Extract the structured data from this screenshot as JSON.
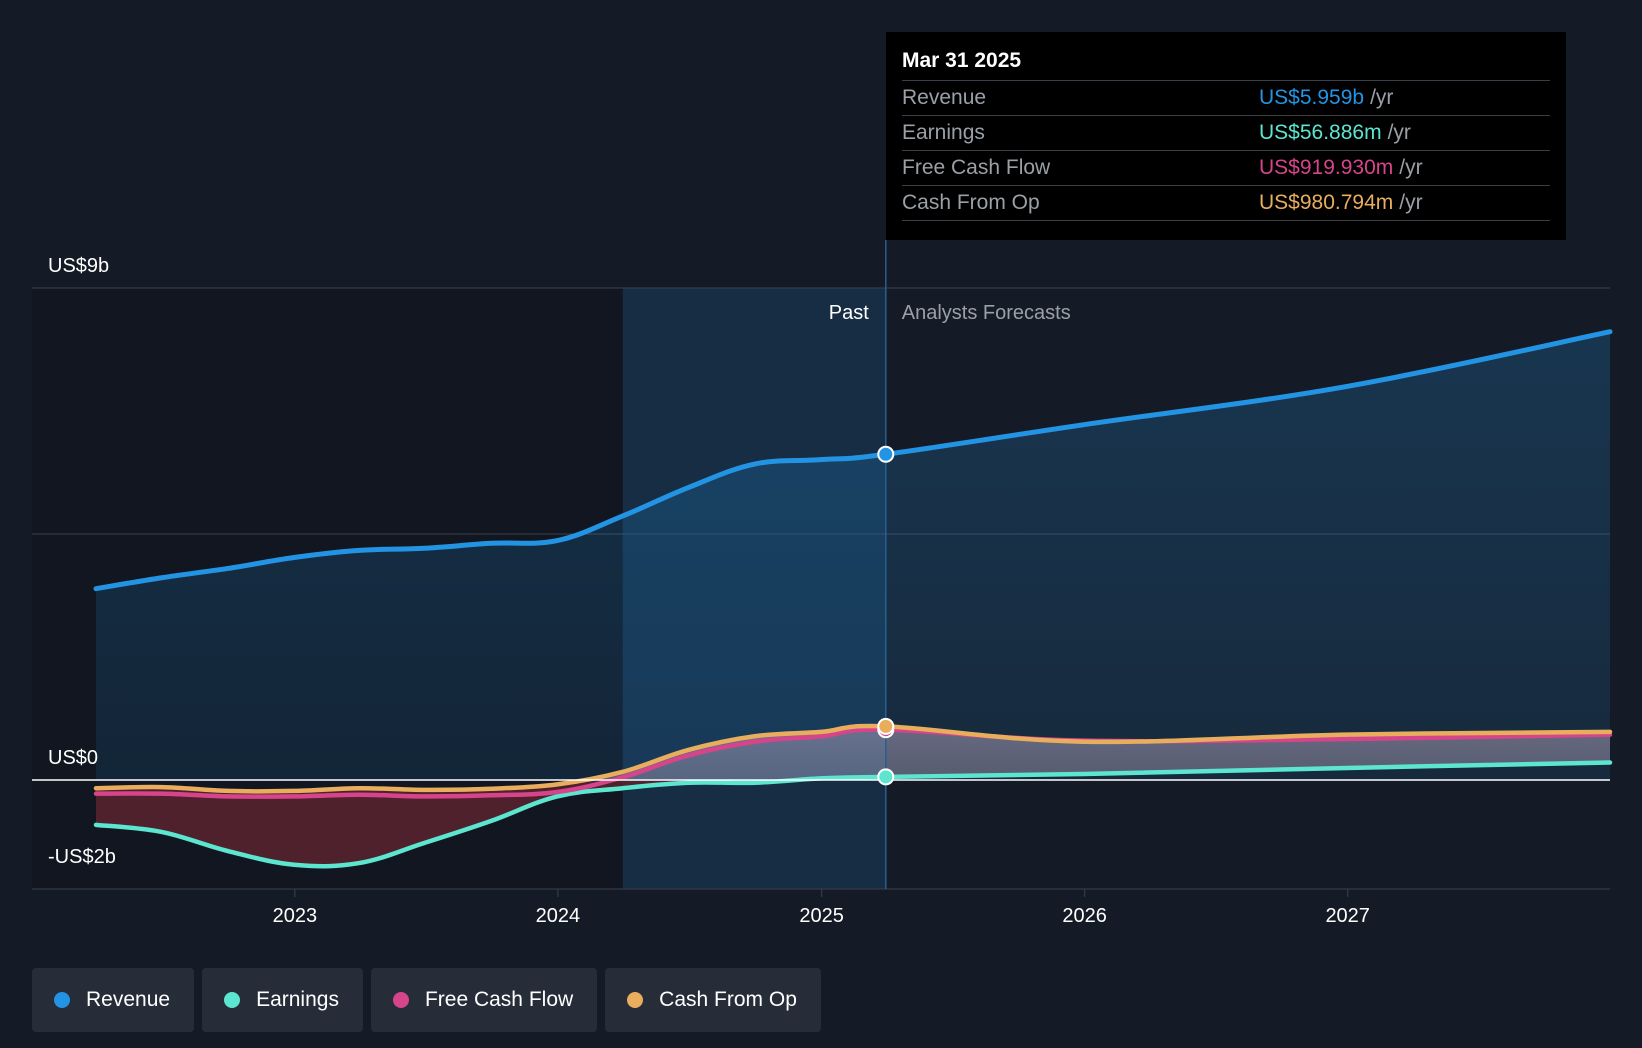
{
  "colors": {
    "revenue": "#2394e3",
    "earnings": "#5ce6d0",
    "free_cash_flow": "#d6458b",
    "cash_from_op": "#e9ae5d",
    "background": "#151b26"
  },
  "tooltip": {
    "date": "Mar 31 2025",
    "rows": [
      {
        "name": "Revenue",
        "value": "US$5.959b",
        "unit": "/yr",
        "color": "#2394e3"
      },
      {
        "name": "Earnings",
        "value": "US$56.886m",
        "unit": "/yr",
        "color": "#5ce6d0"
      },
      {
        "name": "Free Cash Flow",
        "value": "US$919.930m",
        "unit": "/yr",
        "color": "#d6458b"
      },
      {
        "name": "Cash From Op",
        "value": "US$980.794m",
        "unit": "/yr",
        "color": "#e9ae5d"
      }
    ]
  },
  "legend": [
    {
      "label": "Revenue",
      "color": "#2394e3"
    },
    {
      "label": "Earnings",
      "color": "#5ce6d0"
    },
    {
      "label": "Free Cash Flow",
      "color": "#d6458b"
    },
    {
      "label": "Cash From Op",
      "color": "#e9ae5d"
    }
  ],
  "chart_data": {
    "type": "line",
    "title": "",
    "y_tick_labels": [
      "US$9b",
      "US$0",
      "-US$2b"
    ],
    "ylim": [
      -2,
      9
    ],
    "x_tick_labels": [
      "2023",
      "2024",
      "2025",
      "2026",
      "2027"
    ],
    "xlim": [
      "2022-03-31",
      "2027-12-31"
    ],
    "period_labels": {
      "past": "Past",
      "forecast": "Analysts Forecasts"
    },
    "past_end": "2025-03-31",
    "shaded_region_start": "2024-03-31",
    "series": [
      {
        "name": "Revenue",
        "color": "#2394e3",
        "points": [
          [
            "2022-03-31",
            3.5
          ],
          [
            "2022-06-30",
            3.7
          ],
          [
            "2022-09-30",
            3.87
          ],
          [
            "2022-12-31",
            4.07
          ],
          [
            "2023-03-31",
            4.2
          ],
          [
            "2023-06-30",
            4.24
          ],
          [
            "2023-09-30",
            4.33
          ],
          [
            "2023-12-31",
            4.38
          ],
          [
            "2024-03-31",
            4.83
          ],
          [
            "2024-06-30",
            5.35
          ],
          [
            "2024-09-30",
            5.78
          ],
          [
            "2024-12-31",
            5.86
          ],
          [
            "2025-03-31",
            5.959
          ],
          [
            "2025-12-31",
            6.5
          ],
          [
            "2026-12-31",
            7.2
          ],
          [
            "2027-12-31",
            8.2
          ]
        ]
      },
      {
        "name": "Earnings",
        "color": "#5ce6d0",
        "points": [
          [
            "2022-03-31",
            -0.82
          ],
          [
            "2022-06-30",
            -0.95
          ],
          [
            "2022-09-30",
            -1.3
          ],
          [
            "2022-12-31",
            -1.55
          ],
          [
            "2023-03-31",
            -1.52
          ],
          [
            "2023-06-30",
            -1.15
          ],
          [
            "2023-09-30",
            -0.75
          ],
          [
            "2023-12-31",
            -0.3
          ],
          [
            "2024-03-31",
            -0.15
          ],
          [
            "2024-06-30",
            -0.05
          ],
          [
            "2024-09-30",
            -0.05
          ],
          [
            "2024-12-31",
            0.03
          ],
          [
            "2025-03-31",
            0.056886
          ],
          [
            "2025-12-31",
            0.11
          ],
          [
            "2026-12-31",
            0.22
          ],
          [
            "2027-12-31",
            0.32
          ]
        ]
      },
      {
        "name": "Free Cash Flow",
        "color": "#d6458b",
        "points": [
          [
            "2022-03-31",
            -0.25
          ],
          [
            "2022-06-30",
            -0.25
          ],
          [
            "2022-09-30",
            -0.3
          ],
          [
            "2022-12-31",
            -0.3
          ],
          [
            "2023-03-31",
            -0.27
          ],
          [
            "2023-06-30",
            -0.3
          ],
          [
            "2023-09-30",
            -0.28
          ],
          [
            "2023-12-31",
            -0.22
          ],
          [
            "2024-03-31",
            0.05
          ],
          [
            "2024-06-30",
            0.45
          ],
          [
            "2024-09-30",
            0.7
          ],
          [
            "2024-12-31",
            0.8
          ],
          [
            "2025-03-31",
            0.91993
          ],
          [
            "2025-12-31",
            0.72
          ],
          [
            "2026-12-31",
            0.75
          ],
          [
            "2027-12-31",
            0.83
          ]
        ]
      },
      {
        "name": "Cash From Op",
        "color": "#e9ae5d",
        "points": [
          [
            "2022-03-31",
            -0.15
          ],
          [
            "2022-06-30",
            -0.13
          ],
          [
            "2022-09-30",
            -0.2
          ],
          [
            "2022-12-31",
            -0.2
          ],
          [
            "2023-03-31",
            -0.15
          ],
          [
            "2023-06-30",
            -0.18
          ],
          [
            "2023-09-30",
            -0.16
          ],
          [
            "2023-12-31",
            -0.08
          ],
          [
            "2024-03-31",
            0.15
          ],
          [
            "2024-06-30",
            0.55
          ],
          [
            "2024-09-30",
            0.8
          ],
          [
            "2024-12-31",
            0.88
          ],
          [
            "2025-03-31",
            0.980794
          ],
          [
            "2025-12-31",
            0.7
          ],
          [
            "2026-12-31",
            0.83
          ],
          [
            "2027-12-31",
            0.88
          ]
        ]
      }
    ],
    "highlighted_date": "2025-03-31",
    "grid": true
  }
}
